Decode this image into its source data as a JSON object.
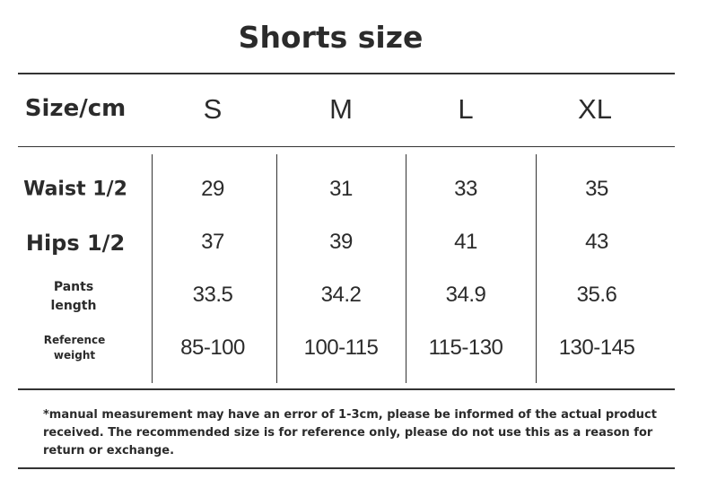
{
  "title": "Shorts size",
  "table": {
    "header": [
      "Size/cm",
      "S",
      "M",
      "L",
      "XL"
    ],
    "rows": [
      {
        "label": "Waist 1/2",
        "values": [
          "29",
          "31",
          "33",
          "35"
        ]
      },
      {
        "label": "Hips 1/2",
        "values": [
          "37",
          "39",
          "41",
          "43"
        ]
      },
      {
        "label_line1": "Pants",
        "label_line2": "length",
        "values": [
          "33.5",
          "34.2",
          "34.9",
          "35.6"
        ]
      },
      {
        "label_line1": "Reference",
        "label_line2": "weight",
        "values": [
          "85-100",
          "100-115",
          "115-130",
          "130-145"
        ]
      }
    ]
  },
  "note": "*manual measurement may have an error of 1-3cm, please be informed of the actual product received.   The recommended size is for reference only, please do not use this as a reason for return or exchange."
}
